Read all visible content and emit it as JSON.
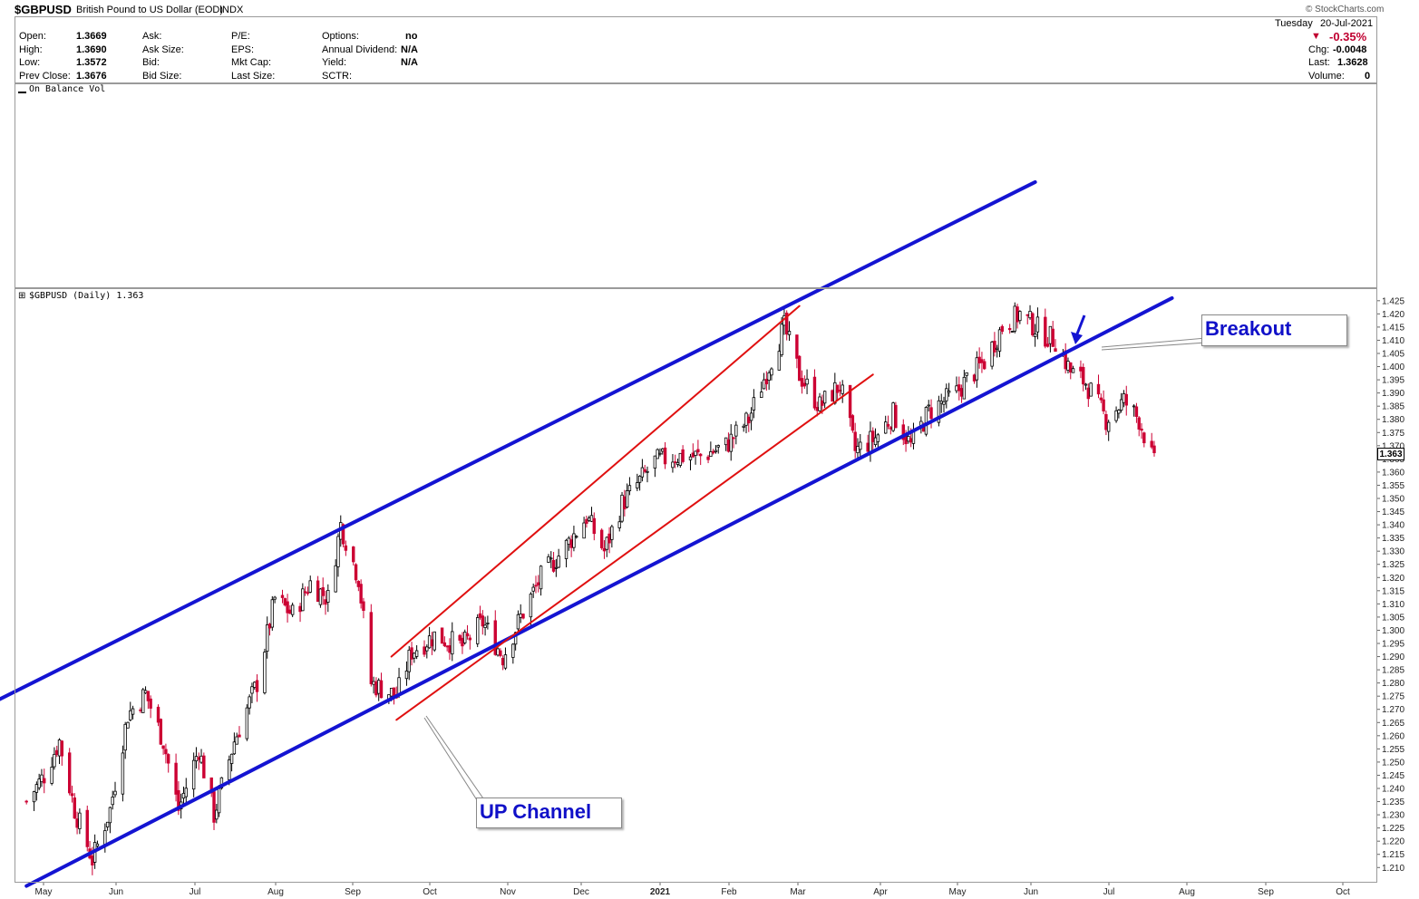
{
  "header": {
    "symbol": "$GBPUSD",
    "name": "British Pound to US Dollar (EOD)",
    "exchange": "INDX",
    "watermark": "© StockCharts.com",
    "day": "Tuesday",
    "date": "20-Jul-2021",
    "pct_change": "-0.35%",
    "chg_label": "Chg:",
    "chg_value": "-0.0048",
    "last_label": "Last:",
    "last_value": "1.3628",
    "volume_label": "Volume:",
    "volume_value": "0"
  },
  "quote": {
    "open_label": "Open:",
    "open": "1.3669",
    "high_label": "High:",
    "high": "1.3690",
    "low_label": "Low:",
    "low": "1.3572",
    "prev_label": "Prev Close:",
    "prev": "1.3676",
    "ask_label": "Ask:",
    "ask_size_label": "Ask Size:",
    "bid_label": "Bid:",
    "bid_size_label": "Bid Size:",
    "pe_label": "P/E:",
    "eps_label": "EPS:",
    "mktcap_label": "Mkt Cap:",
    "lastsize_label": "Last Size:",
    "options_label": "Options:",
    "options": "no",
    "dividend_label": "Annual Dividend:",
    "dividend": "N/A",
    "yield_label": "Yield:",
    "yield": "N/A",
    "sctr_label": "SCTR:"
  },
  "obv_panel": {
    "legend": "On Balance Vol"
  },
  "price_panel": {
    "legend": "$GBPUSD (Daily) 1.363",
    "last_badge": "1.363"
  },
  "annotations": {
    "breakout": "Breakout",
    "up_channel": "UP Channel"
  },
  "colors": {
    "up": "#000000",
    "down": "#cc0033",
    "channel": "#1414d2",
    "inner_channel": "#e01010",
    "callout_text": "#1010c8"
  },
  "chart_data": {
    "type": "candlestick",
    "title": "$GBPUSD (Daily) 1.363",
    "ylim": [
      1.207,
      1.427
    ],
    "y_ticks": [
      "1.425",
      "1.420",
      "1.415",
      "1.410",
      "1.405",
      "1.400",
      "1.395",
      "1.390",
      "1.385",
      "1.380",
      "1.375",
      "1.370",
      "1.365",
      "1.360",
      "1.355",
      "1.350",
      "1.345",
      "1.340",
      "1.335",
      "1.330",
      "1.325",
      "1.320",
      "1.315",
      "1.310",
      "1.305",
      "1.300",
      "1.295",
      "1.290",
      "1.285",
      "1.280",
      "1.275",
      "1.270",
      "1.265",
      "1.260",
      "1.255",
      "1.250",
      "1.245",
      "1.240",
      "1.235",
      "1.230",
      "1.225",
      "1.220",
      "1.215",
      "1.210"
    ],
    "x_ticks": [
      "May",
      "Jun",
      "Jul",
      "Aug",
      "Sep",
      "Oct",
      "Nov",
      "Dec",
      "2021",
      "Feb",
      "Mar",
      "Apr",
      "May",
      "Jun",
      "Jul",
      "Aug",
      "Sep",
      "Oct"
    ],
    "close_path": [
      {
        "date": "2020-05-01",
        "close": 1.235
      },
      {
        "date": "2020-05-08",
        "close": 1.245
      },
      {
        "date": "2020-05-14",
        "close": 1.258
      },
      {
        "date": "2020-05-20",
        "close": 1.232
      },
      {
        "date": "2020-05-27",
        "close": 1.213
      },
      {
        "date": "2020-06-03",
        "close": 1.232
      },
      {
        "date": "2020-06-10",
        "close": 1.268
      },
      {
        "date": "2020-06-17",
        "close": 1.276
      },
      {
        "date": "2020-06-24",
        "close": 1.258
      },
      {
        "date": "2020-06-30",
        "close": 1.232
      },
      {
        "date": "2020-07-08",
        "close": 1.255
      },
      {
        "date": "2020-07-14",
        "close": 1.23
      },
      {
        "date": "2020-07-22",
        "close": 1.258
      },
      {
        "date": "2020-07-31",
        "close": 1.28
      },
      {
        "date": "2020-08-07",
        "close": 1.312
      },
      {
        "date": "2020-08-14",
        "close": 1.306
      },
      {
        "date": "2020-08-21",
        "close": 1.318
      },
      {
        "date": "2020-08-28",
        "close": 1.312
      },
      {
        "date": "2020-09-02",
        "close": 1.34
      },
      {
        "date": "2020-09-09",
        "close": 1.32
      },
      {
        "date": "2020-09-14",
        "close": 1.28
      },
      {
        "date": "2020-09-24",
        "close": 1.275
      },
      {
        "date": "2020-09-30",
        "close": 1.292
      },
      {
        "date": "2020-10-09",
        "close": 1.298
      },
      {
        "date": "2020-10-20",
        "close": 1.294
      },
      {
        "date": "2020-10-28",
        "close": 1.303
      },
      {
        "date": "2020-11-05",
        "close": 1.29
      },
      {
        "date": "2020-11-12",
        "close": 1.305
      },
      {
        "date": "2020-11-20",
        "close": 1.32
      },
      {
        "date": "2020-11-30",
        "close": 1.332
      },
      {
        "date": "2020-12-08",
        "close": 1.343
      },
      {
        "date": "2020-12-15",
        "close": 1.33
      },
      {
        "date": "2020-12-22",
        "close": 1.348
      },
      {
        "date": "2021-01-04",
        "close": 1.364
      },
      {
        "date": "2021-01-12",
        "close": 1.366
      },
      {
        "date": "2021-01-22",
        "close": 1.366
      },
      {
        "date": "2021-02-01",
        "close": 1.37
      },
      {
        "date": "2021-02-10",
        "close": 1.38
      },
      {
        "date": "2021-02-19",
        "close": 1.403
      },
      {
        "date": "2021-02-24",
        "close": 1.415
      },
      {
        "date": "2021-03-02",
        "close": 1.397
      },
      {
        "date": "2021-03-10",
        "close": 1.385
      },
      {
        "date": "2021-03-18",
        "close": 1.393
      },
      {
        "date": "2021-03-24",
        "close": 1.368
      },
      {
        "date": "2021-04-01",
        "close": 1.373
      },
      {
        "date": "2021-04-08",
        "close": 1.382
      },
      {
        "date": "2021-04-15",
        "close": 1.37
      },
      {
        "date": "2021-04-22",
        "close": 1.383
      },
      {
        "date": "2021-05-03",
        "close": 1.39
      },
      {
        "date": "2021-05-07",
        "close": 1.395
      },
      {
        "date": "2021-05-14",
        "close": 1.402
      },
      {
        "date": "2021-05-21",
        "close": 1.415
      },
      {
        "date": "2021-05-28",
        "close": 1.42
      },
      {
        "date": "2021-06-07",
        "close": 1.412
      },
      {
        "date": "2021-06-11",
        "close": 1.41
      },
      {
        "date": "2021-06-17",
        "close": 1.398
      },
      {
        "date": "2021-06-23",
        "close": 1.394
      },
      {
        "date": "2021-07-01",
        "close": 1.38
      },
      {
        "date": "2021-07-08",
        "close": 1.387
      },
      {
        "date": "2021-07-14",
        "close": 1.38
      },
      {
        "date": "2021-07-20",
        "close": 1.363
      }
    ],
    "trendlines": [
      {
        "name": "upper-channel",
        "from": [
          "2020-04-02",
          1.265
        ],
        "to": [
          "2021-06-03",
          1.47
        ]
      },
      {
        "name": "lower-channel",
        "from": [
          "2020-05-01",
          1.203
        ],
        "to": [
          "2021-07-27",
          1.426
        ]
      },
      {
        "name": "inner-upper",
        "from": [
          "2020-09-22",
          1.29
        ],
        "to": [
          "2021-03-02",
          1.423
        ]
      },
      {
        "name": "inner-lower",
        "from": [
          "2020-09-24",
          1.266
        ],
        "to": [
          "2021-03-31",
          1.397
        ]
      }
    ]
  }
}
